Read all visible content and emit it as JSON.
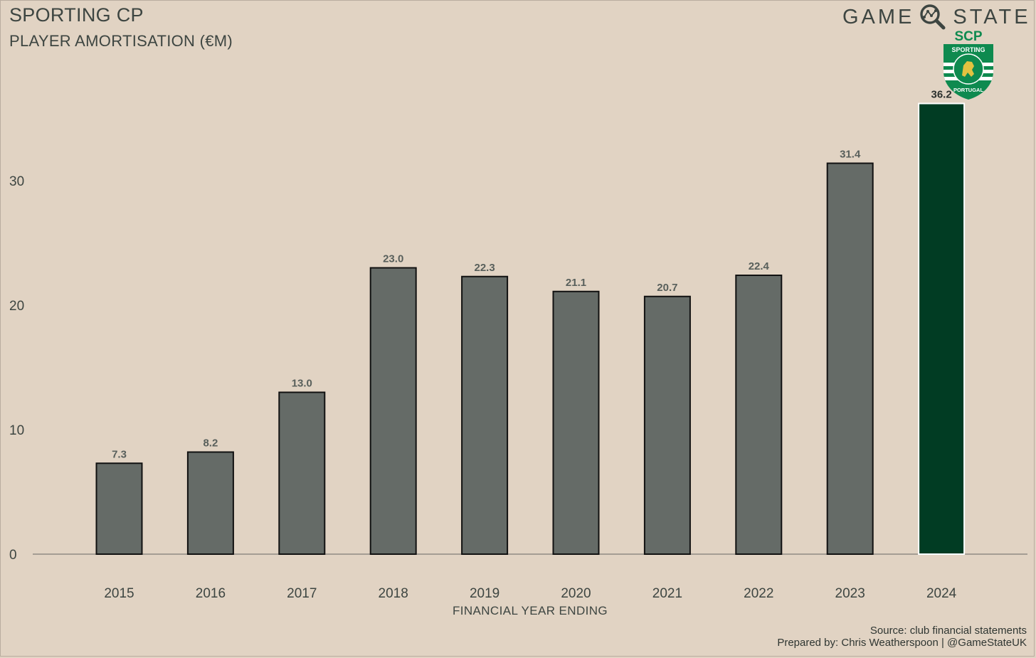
{
  "header": {
    "title": "SPORTING CP",
    "subtitle": "PLAYER AMORTISATION (€M)"
  },
  "brand": {
    "word_left": "GAME",
    "word_right": "STATE",
    "icon": "magnifier-network-icon"
  },
  "crest": {
    "text_top": "SCP",
    "text_ring_top": "SPORTING",
    "text_ring_bottom": "PORTUGAL",
    "icon": "lion-crest-icon",
    "colors": {
      "green": "#0e8a4f",
      "gold": "#e2c240"
    }
  },
  "chart_data": {
    "type": "bar",
    "title": "SPORTING CP",
    "subtitle": "PLAYER AMORTISATION (€M)",
    "xlabel": "FINANCIAL YEAR ENDING",
    "ylabel": "",
    "categories": [
      "2015",
      "2016",
      "2017",
      "2018",
      "2019",
      "2020",
      "2021",
      "2022",
      "2023",
      "2024"
    ],
    "values": [
      7.3,
      8.2,
      13.0,
      23.0,
      22.3,
      21.1,
      20.7,
      22.4,
      31.4,
      36.2
    ],
    "value_labels": [
      "7.3",
      "8.2",
      "13.0",
      "23.0",
      "22.3",
      "21.1",
      "20.7",
      "22.4",
      "31.4",
      "36.2"
    ],
    "ylim": [
      0,
      40
    ],
    "yticks": [
      0,
      10,
      20,
      30
    ],
    "grid": false,
    "highlight_category": "2024",
    "colors": {
      "bar": "#656b67",
      "bar_highlight": "#013c23",
      "bar_label": "#585f5b",
      "bar_label_highlight": "#2b302d",
      "baseline": "#a49d93",
      "text": "#3d4541"
    }
  },
  "footer": {
    "source": "Source: club financial statements",
    "credit": "Prepared by: Chris Weatherspoon | @GameStateUK"
  }
}
